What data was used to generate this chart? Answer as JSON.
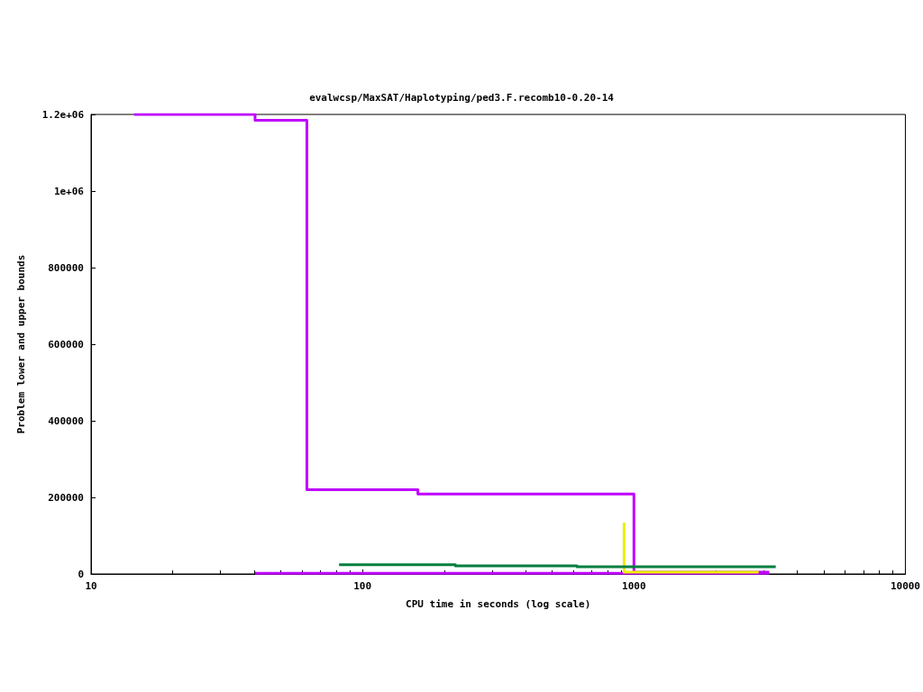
{
  "chart_data": {
    "type": "step",
    "title": "evalwcsp/MaxSAT/Haplotyping/ped3.F.recomb10-0.20-14",
    "xlabel": "CPU time in seconds (log scale)",
    "ylabel": "Problem lower and upper bounds",
    "log": "x",
    "xlim": [
      10,
      10000
    ],
    "xticks": [
      10,
      100,
      1000,
      10000
    ],
    "ylim": [
      0,
      1200000
    ],
    "yticks": [
      0,
      200000,
      400000,
      600000,
      800000,
      {
        "value": 1000000,
        "label": "1e+06"
      },
      {
        "value": 1200000,
        "label": "1.2e+06"
      }
    ],
    "grid": false,
    "series": [
      {
        "color": "#bf00ff",
        "x": [
          14.4,
          40.2,
          62.4,
          160,
          1000,
          3150
        ],
        "values": [
          1200000,
          1185000,
          220000,
          209000,
          5000,
          5000
        ]
      },
      {
        "color": "#bf00ff",
        "x": [
          40.2,
          3150
        ],
        "values": [
          2000,
          2000
        ]
      },
      {
        "color": "#eeee00",
        "x": [
          920,
          920,
          2880
        ],
        "values": [
          134000,
          5000,
          5000
        ]
      },
      {
        "color": "#007f3f",
        "x": [
          82,
          220,
          617,
          3330
        ],
        "values": [
          24000,
          21000,
          19000,
          19000
        ]
      }
    ]
  }
}
